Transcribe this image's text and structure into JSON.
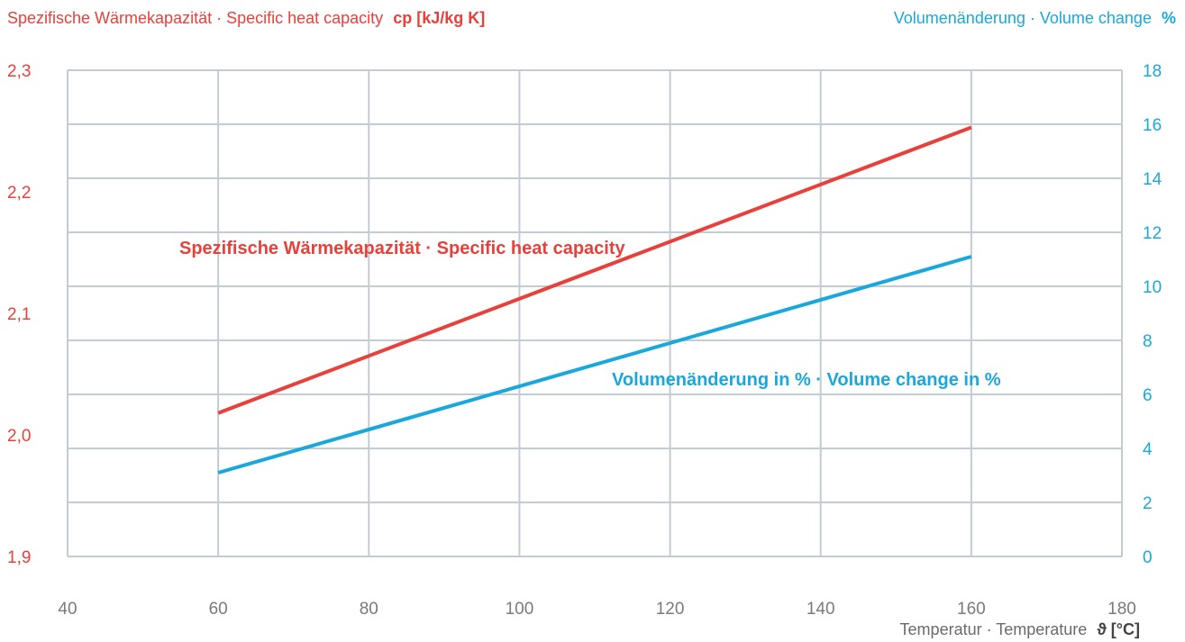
{
  "chart_data": {
    "type": "line",
    "title_left": "Spezifische Wärmekapazität · Specific heat capacity",
    "title_left_unit": "cp [kJ/kg K]",
    "title_right": "Volumenänderung · Volume change",
    "title_right_unit": "%",
    "xlabel": "Temperatur · Temperature",
    "xlabel_unit": "ϑ [°C]",
    "xlim": [
      40,
      180
    ],
    "x_ticks": [
      40,
      60,
      80,
      100,
      120,
      140,
      160,
      180
    ],
    "ylim_left": [
      1.9,
      2.3
    ],
    "y_ticks_left": [
      "1,9",
      "2,0",
      "2,1",
      "2,2",
      "2,3"
    ],
    "ylim_right": [
      0,
      18
    ],
    "y_ticks_right": [
      0,
      2,
      4,
      6,
      8,
      10,
      12,
      14,
      16,
      18
    ],
    "grid": true,
    "series": [
      {
        "name": "Spezifische Wärmekapazität · Specific heat capacity",
        "axis": "left",
        "color": "#e8403a",
        "x": [
          60,
          160
        ],
        "y": [
          2.018,
          2.253
        ]
      },
      {
        "name": "Volumenänderung in % · Volume change in %",
        "axis": "right",
        "color": "#1aa7dc",
        "x": [
          60,
          160
        ],
        "y": [
          3.1,
          11.1
        ]
      }
    ]
  }
}
